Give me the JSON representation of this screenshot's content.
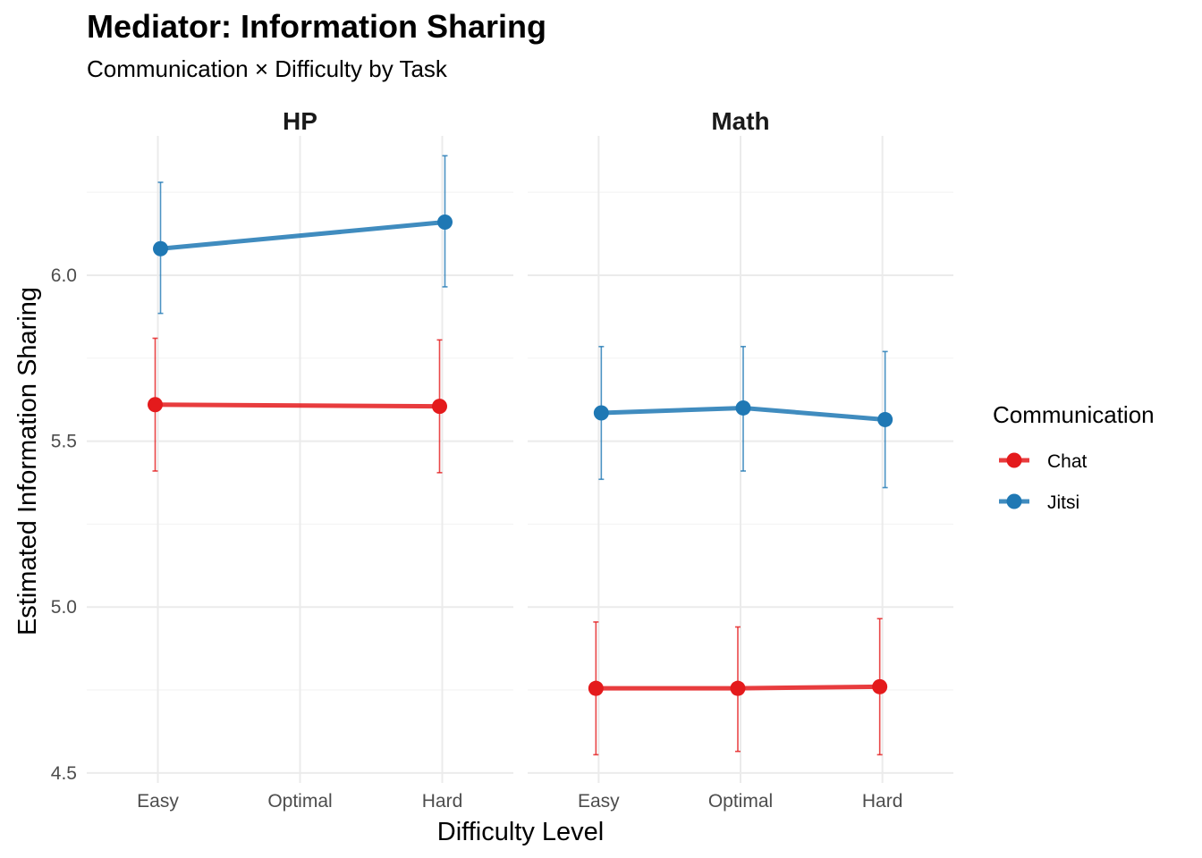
{
  "chart_data": {
    "type": "line",
    "title": "Mediator: Information Sharing",
    "subtitle": "Communication × Difficulty by Task",
    "xlabel": "Difficulty Level",
    "ylabel": "Estimated Information Sharing",
    "categories": [
      "Easy",
      "Optimal",
      "Hard"
    ],
    "ylim": [
      4.47,
      6.42
    ],
    "yticks": [
      4.5,
      5.0,
      5.5,
      6.0
    ],
    "ytick_labels": [
      "4.5",
      "5.0",
      "5.5",
      "6.0"
    ],
    "grid": true,
    "legend": {
      "title": "Communication",
      "position": "right"
    },
    "series_colors": {
      "Chat": "#E41A1C",
      "Jitsi": "#1F78B4"
    },
    "panels": [
      {
        "name": "HP",
        "series": [
          {
            "name": "Chat",
            "points": [
              {
                "x": "Easy",
                "y": 5.61,
                "ymin": 5.41,
                "ymax": 5.81
              },
              {
                "x": "Hard",
                "y": 5.605,
                "ymin": 5.405,
                "ymax": 5.805
              }
            ]
          },
          {
            "name": "Jitsi",
            "points": [
              {
                "x": "Easy",
                "y": 6.08,
                "ymin": 5.885,
                "ymax": 6.28
              },
              {
                "x": "Hard",
                "y": 6.16,
                "ymin": 5.965,
                "ymax": 6.36
              }
            ]
          }
        ]
      },
      {
        "name": "Math",
        "series": [
          {
            "name": "Chat",
            "points": [
              {
                "x": "Easy",
                "y": 4.755,
                "ymin": 4.555,
                "ymax": 4.955
              },
              {
                "x": "Optimal",
                "y": 4.755,
                "ymin": 4.565,
                "ymax": 4.94
              },
              {
                "x": "Hard",
                "y": 4.76,
                "ymin": 4.555,
                "ymax": 4.965
              }
            ]
          },
          {
            "name": "Jitsi",
            "points": [
              {
                "x": "Easy",
                "y": 5.585,
                "ymin": 5.385,
                "ymax": 5.785
              },
              {
                "x": "Optimal",
                "y": 5.6,
                "ymin": 5.41,
                "ymax": 5.785
              },
              {
                "x": "Hard",
                "y": 5.565,
                "ymin": 5.36,
                "ymax": 5.77
              }
            ]
          }
        ]
      }
    ]
  }
}
